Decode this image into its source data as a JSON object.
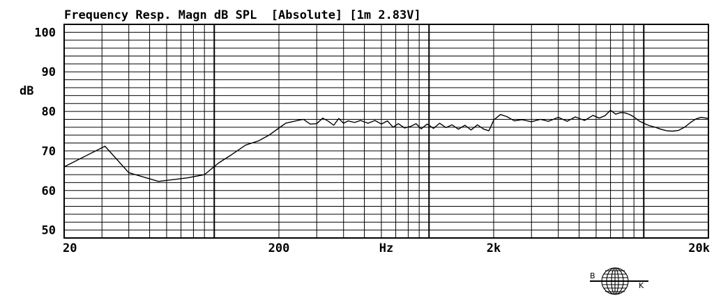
{
  "chart_data": {
    "type": "line",
    "title": "Frequency Resp. Magn dB SPL  [Absolute] [1m 2.83V]",
    "ylabel": "dB",
    "xlabel": "Hz",
    "x_scale": "log",
    "xlim": [
      20,
      20000
    ],
    "ylim": [
      48,
      102
    ],
    "y_ticks": [
      {
        "value": 100,
        "label": "100"
      },
      {
        "value": 90,
        "label": "90"
      },
      {
        "value": 80,
        "label": "80"
      },
      {
        "value": 70,
        "label": "70"
      },
      {
        "value": 60,
        "label": "60"
      },
      {
        "value": 50,
        "label": "50"
      }
    ],
    "x_ticks": [
      {
        "value": 20,
        "label": "20"
      },
      {
        "value": 200,
        "label": "200"
      },
      {
        "value": 2000,
        "label": "2k"
      },
      {
        "value": 20000,
        "label": "20k"
      }
    ],
    "grid": true,
    "series": [
      {
        "line_color": "#000000",
        "x": [
          20,
          31,
          40,
          55,
          75,
          90,
          105,
          120,
          140,
          160,
          180,
          200,
          215,
          240,
          260,
          280,
          300,
          320,
          340,
          360,
          380,
          400,
          420,
          450,
          480,
          520,
          560,
          600,
          640,
          680,
          720,
          770,
          820,
          870,
          920,
          980,
          1050,
          1120,
          1200,
          1280,
          1370,
          1470,
          1570,
          1680,
          1800,
          1900,
          1950,
          2000,
          2150,
          2300,
          2500,
          2700,
          3000,
          3300,
          3600,
          4000,
          4400,
          4800,
          5300,
          5800,
          6200,
          6600,
          7000,
          7400,
          7800,
          8200,
          8600,
          9000,
          9500,
          10000,
          10600,
          11300,
          12000,
          12800,
          13600,
          14500,
          15500,
          16500,
          17500,
          18500,
          19500,
          20000
        ],
        "y": [
          66,
          71.2,
          64.5,
          62.3,
          63.2,
          64,
          67,
          69,
          71.5,
          72.5,
          74,
          75.8,
          77,
          77.6,
          78,
          76.8,
          76.9,
          78.3,
          77.5,
          76.5,
          78.2,
          77,
          77.6,
          77.2,
          77.7,
          77,
          77.7,
          76.8,
          77.6,
          76,
          76.9,
          75.8,
          76.2,
          76.9,
          75.6,
          76.8,
          75.7,
          77,
          75.9,
          76.6,
          75.5,
          76.5,
          75.3,
          76.6,
          75.5,
          75.1,
          76.4,
          77.8,
          79.2,
          78.7,
          77.6,
          77.9,
          77.4,
          78,
          77.5,
          78.5,
          77.5,
          78.6,
          77.7,
          79,
          78.3,
          78.9,
          80.3,
          79.3,
          79.7,
          79.6,
          79.2,
          78.6,
          77.6,
          77,
          76.4,
          76,
          75.5,
          75.1,
          75,
          75.2,
          76,
          77.2,
          78.1,
          78.5,
          78.3,
          78.2
        ]
      }
    ]
  },
  "logo": {
    "left_letter": "B",
    "right_letter": "K"
  }
}
